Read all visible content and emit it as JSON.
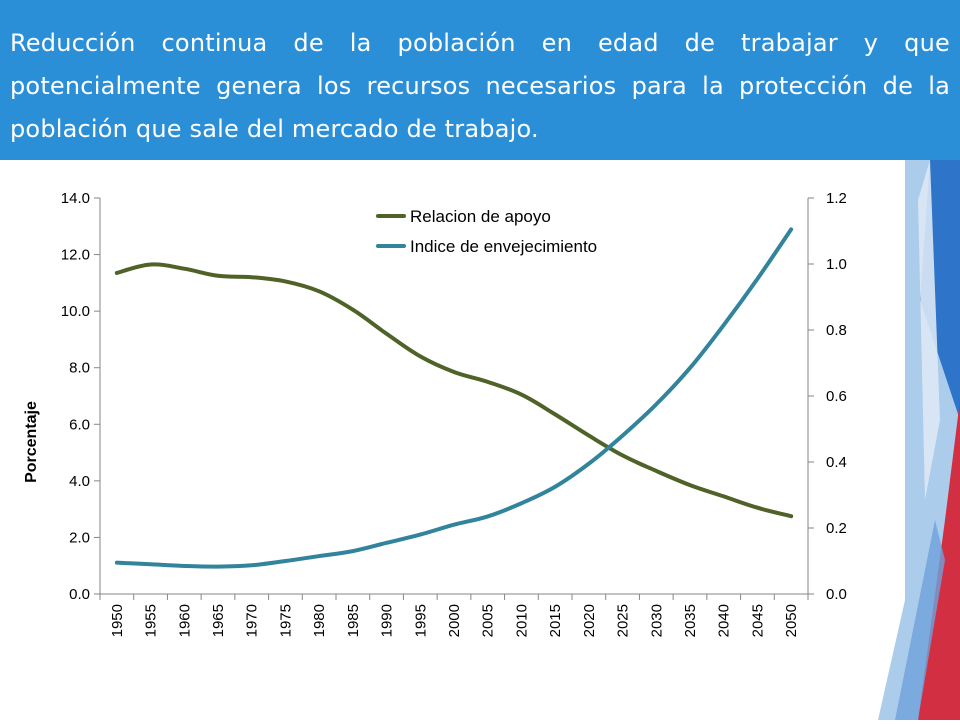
{
  "header": {
    "title": "Reducción continua de la población en edad de trabajar y que potencialmente genera los recursos necesarios para la protección de la población que sale del mercado de trabajo."
  },
  "colors": {
    "header_bg": "#2b8fd8",
    "series_1": "#4f6228",
    "series_2": "#31849b",
    "decor_blue_dark": "#2e74c9",
    "decor_blue_light": "#9cc3e6",
    "decor_red": "#d32f42"
  },
  "chart_data": {
    "type": "line",
    "x": [
      "1950",
      "1955",
      "1960",
      "1965",
      "1970",
      "1975",
      "1980",
      "1985",
      "1990",
      "1995",
      "2000",
      "2005",
      "2010",
      "2015",
      "2020",
      "2025",
      "2030",
      "2035",
      "2040",
      "2045",
      "2050"
    ],
    "ylabel": "Porcentaje",
    "ylim": [
      0,
      14
    ],
    "y2lim": [
      0,
      1.2
    ],
    "yticks": [
      "0.0",
      "2.0",
      "4.0",
      "6.0",
      "8.0",
      "10.0",
      "12.0",
      "14.0"
    ],
    "y2ticks": [
      "0.0",
      "0.2",
      "0.4",
      "0.6",
      "0.8",
      "1.0",
      "1.2"
    ],
    "legend_position": "top-center",
    "grid": false,
    "series": [
      {
        "name": "Relacion de apoyo",
        "axis": "left",
        "color": "#4f6228",
        "values": [
          11.35,
          11.65,
          11.5,
          11.25,
          11.2,
          11.05,
          10.7,
          10.05,
          9.2,
          8.4,
          7.85,
          7.5,
          7.05,
          6.35,
          5.6,
          4.9,
          4.35,
          3.85,
          3.45,
          3.05,
          2.75
        ]
      },
      {
        "name": "Indice de envejecimiento",
        "axis": "right",
        "color": "#31849b",
        "values": [
          0.095,
          0.09,
          0.085,
          0.083,
          0.087,
          0.1,
          0.115,
          0.13,
          0.155,
          0.18,
          0.21,
          0.235,
          0.275,
          0.325,
          0.395,
          0.48,
          0.575,
          0.685,
          0.815,
          0.955,
          1.105
        ]
      }
    ]
  }
}
